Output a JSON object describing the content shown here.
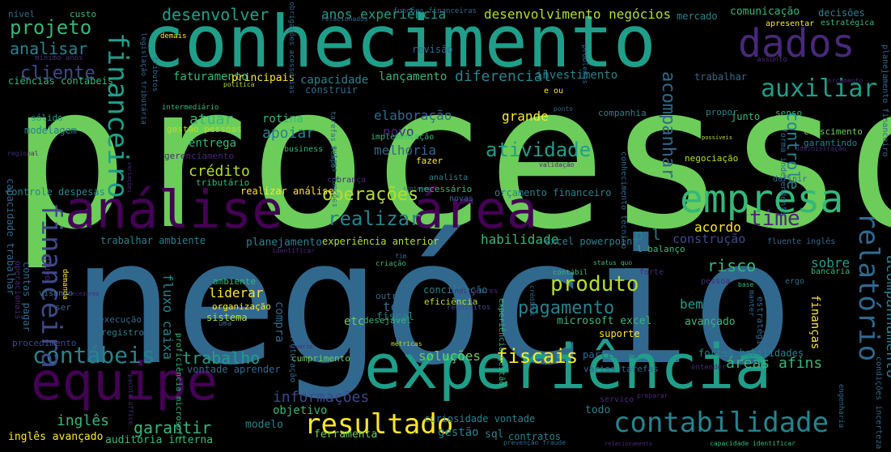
{
  "palette": {
    "background": "#000000",
    "yellow": "#fde725",
    "lime": "#b5de2b",
    "green": "#6ccd5a",
    "seagreen": "#35b779",
    "teal": "#1f9e89",
    "tealblue": "#26828e",
    "blue": "#31688e",
    "indigo": "#3e4989",
    "purple": "#482878",
    "darkpurple": "#440154"
  },
  "words": [
    {
      "text": "processo",
      "color": "#6ccd5a"
    },
    {
      "text": "negócio",
      "color": "#31688e"
    },
    {
      "text": "conhecimento",
      "color": "#1f9e89"
    },
    {
      "text": "experiência",
      "color": "#1f9e89"
    },
    {
      "text": "análise",
      "color": "#440154"
    },
    {
      "text": "área",
      "color": "#440154"
    },
    {
      "text": "equipe",
      "color": "#440154"
    },
    {
      "text": "empresa",
      "color": "#35b779"
    },
    {
      "text": "dados",
      "color": "#482878"
    },
    {
      "text": "contábeis",
      "color": "#26828e"
    },
    {
      "text": "resultado",
      "color": "#fde725"
    },
    {
      "text": "contabilidade",
      "color": "#26828e"
    },
    {
      "text": "financeiro",
      "color": "#1f9e89"
    },
    {
      "text": "financeira",
      "color": "#3e4989"
    },
    {
      "text": "relatório",
      "color": "#31688e"
    },
    {
      "text": "acompanhamento",
      "color": "#26828e"
    },
    {
      "text": "auxiliar",
      "color": "#1f9e89"
    },
    {
      "text": "projeto",
      "color": "#35b779"
    },
    {
      "text": "operações",
      "color": "#b5de2b"
    },
    {
      "text": "atividade",
      "color": "#1f9e89"
    },
    {
      "text": "produto",
      "color": "#b5de2b"
    },
    {
      "text": "pagamento",
      "color": "#26828e"
    },
    {
      "text": "fiscais",
      "color": "#fde725"
    },
    {
      "text": "realizar",
      "color": "#26828e"
    },
    {
      "text": "time",
      "color": "#482878"
    },
    {
      "text": "acompanhar",
      "color": "#31688e"
    },
    {
      "text": "controle",
      "color": "#26828e"
    },
    {
      "text": "cliente",
      "color": "#3e4989"
    },
    {
      "text": "analisar",
      "color": "#26828e"
    },
    {
      "text": "desenvolver",
      "color": "#1f9e89"
    },
    {
      "text": "anos experiência",
      "color": "#1f9e89"
    },
    {
      "text": "desenvolvimento negócios",
      "color": "#b5de2b"
    },
    {
      "text": "trabalho",
      "color": "#1f9e89"
    },
    {
      "text": "informações",
      "color": "#3e4989"
    },
    {
      "text": "garantir",
      "color": "#35b779"
    },
    {
      "text": "inglês",
      "color": "#35b779"
    },
    {
      "text": "soluções",
      "color": "#6ccd5a"
    },
    {
      "text": "áreas afins",
      "color": "#35b779"
    },
    {
      "text": "crédito",
      "color": "#b5de2b"
    },
    {
      "text": "atuar",
      "color": "#35b779"
    },
    {
      "text": "melhoria",
      "color": "#31688e"
    },
    {
      "text": "risco",
      "color": "#35b779"
    },
    {
      "text": "diferencial",
      "color": "#26828e"
    },
    {
      "text": "elaboração",
      "color": "#31688e"
    },
    {
      "text": "apoiar",
      "color": "#26828e"
    },
    {
      "text": "rotina",
      "color": "#35b779"
    },
    {
      "text": "capacidade",
      "color": "#26828e"
    },
    {
      "text": "faturamento",
      "color": "#35b779"
    },
    {
      "text": "lançamento",
      "color": "#35b779"
    },
    {
      "text": "investimento",
      "color": "#26828e"
    },
    {
      "text": "grande",
      "color": "#fde725"
    },
    {
      "text": "novo",
      "color": "#482878"
    },
    {
      "text": "acordo",
      "color": "#fde725"
    },
    {
      "text": "bem",
      "color": "#1f9e89"
    },
    {
      "text": "habilidade",
      "color": "#35b779"
    },
    {
      "text": "construção",
      "color": "#3e4989"
    },
    {
      "text": "sobre",
      "color": "#1f9e89"
    },
    {
      "text": "p l",
      "color": "#26828e"
    },
    {
      "text": "liderar",
      "color": "#fde725"
    },
    {
      "text": "ter",
      "color": "#31688e"
    },
    {
      "text": "etc",
      "color": "#6ccd5a"
    },
    {
      "text": "fluxo caixa",
      "color": "#26828e"
    },
    {
      "text": "compra",
      "color": "#31688e"
    },
    {
      "text": "entrega",
      "color": "#35b779"
    },
    {
      "text": "objetivo",
      "color": "#35b779"
    },
    {
      "text": "gestão",
      "color": "#26828e"
    },
    {
      "text": "modelo",
      "color": "#26828e"
    },
    {
      "text": "ferramenta",
      "color": "#6ccd5a"
    },
    {
      "text": "sql",
      "color": "#26828e"
    },
    {
      "text": "todo",
      "color": "#26828e"
    },
    {
      "text": "contratos",
      "color": "#26828e"
    },
    {
      "text": "inglês avançado",
      "color": "#fde725"
    },
    {
      "text": "auditoria interna",
      "color": "#35b779"
    },
    {
      "text": "curiosidade vontade",
      "color": "#26828e"
    },
    {
      "text": "trabalhar ambiente",
      "color": "#26828e"
    },
    {
      "text": "planejamento",
      "color": "#26828e"
    },
    {
      "text": "experiência anterior",
      "color": "#b5de2b"
    },
    {
      "text": "excel powerpoint",
      "color": "#26828e"
    },
    {
      "text": "l balanço",
      "color": "#35b779"
    },
    {
      "text": "microsoft excel",
      "color": "#35b779"
    },
    {
      "text": "avançado",
      "color": "#35b779"
    },
    {
      "text": "suporte",
      "color": "#fde725"
    },
    {
      "text": "participar",
      "color": "#31688e"
    },
    {
      "text": "fortes habilidades",
      "color": "#26828e"
    },
    {
      "text": "várias tarefas",
      "color": "#31688e"
    },
    {
      "text": "cumprimento",
      "color": "#6ccd5a"
    },
    {
      "text": "conciliação",
      "color": "#26828e"
    },
    {
      "text": "eficiência",
      "color": "#b5de2b"
    },
    {
      "text": "outros",
      "color": "#31688e"
    },
    {
      "text": "fiscal",
      "color": "#26828e"
    },
    {
      "text": "desejável",
      "color": "#35b779"
    },
    {
      "text": "sistema",
      "color": "#b5de2b"
    },
    {
      "text": "organização",
      "color": "#fde725"
    },
    {
      "text": "ambiente",
      "color": "#35b779"
    },
    {
      "text": "execução",
      "color": "#31688e"
    },
    {
      "text": "registro",
      "color": "#26828e"
    },
    {
      "text": "vontade aprender",
      "color": "#31688e"
    },
    {
      "text": "procedimento",
      "color": "#3e4989"
    },
    {
      "text": "sólido",
      "color": "#1f9e89"
    },
    {
      "text": "modelagem",
      "color": "#26828e"
    },
    {
      "text": "controle despesas",
      "color": "#26828e"
    },
    {
      "text": "realizar análise",
      "color": "#fde725"
    },
    {
      "text": "orçamento financeiro",
      "color": "#26828e"
    },
    {
      "text": "tributário",
      "color": "#35b779"
    },
    {
      "text": "gerenciamento",
      "color": "#482878"
    },
    {
      "text": "gestão pessoas",
      "color": "#b5de2b"
    },
    {
      "text": "business",
      "color": "#35b779"
    },
    {
      "text": "principais",
      "color": "#fde725"
    },
    {
      "text": "construir",
      "color": "#31688e"
    },
    {
      "text": "revisão",
      "color": "#31688e"
    },
    {
      "text": "comunicação",
      "color": "#35b779"
    },
    {
      "text": "decisões",
      "color": "#26828e"
    },
    {
      "text": "mercado",
      "color": "#26828e"
    },
    {
      "text": "apresentar",
      "color": "#fde725"
    },
    {
      "text": "estratégica",
      "color": "#35b779"
    },
    {
      "text": "trabalhar",
      "color": "#31688e"
    },
    {
      "text": "companhia",
      "color": "#26828e"
    },
    {
      "text": "propor",
      "color": "#26828e"
    },
    {
      "text": "junto",
      "color": "#35b779"
    },
    {
      "text": "senso",
      "color": "#35b779"
    },
    {
      "text": "crescimento",
      "color": "#6ccd5a"
    },
    {
      "text": "garantindo",
      "color": "#26828e"
    },
    {
      "text": "negociação",
      "color": "#b5de2b"
    },
    {
      "text": "definir",
      "color": "#31688e"
    },
    {
      "text": "analista",
      "color": "#26828e"
    },
    {
      "text": "cobrança",
      "color": "#482878"
    },
    {
      "text": "fazer",
      "color": "#fde725"
    },
    {
      "text": "implementação",
      "color": "#35b779"
    },
    {
      "text": "necessário",
      "color": "#35b779"
    },
    {
      "text": "novas",
      "color": "#31688e"
    },
    {
      "text": "e ou",
      "color": "#fde725"
    },
    {
      "text": "nível",
      "color": "#31688e"
    },
    {
      "text": "custo",
      "color": "#35b779"
    },
    {
      "text": "ciências contábeis",
      "color": "#35b779"
    },
    {
      "text": "mínimo anos",
      "color": "#482878"
    },
    {
      "text": "intermediário",
      "color": "#35b779"
    },
    {
      "text": "bancária",
      "color": "#35b779"
    },
    {
      "text": "fluente inglês",
      "color": "#31688e"
    },
    {
      "text": "pessoa",
      "color": "#482878"
    },
    {
      "text": "finanças",
      "color": "#fde725"
    },
    {
      "text": "estratégia",
      "color": "#31688e"
    },
    {
      "text": "contas pagar",
      "color": "#31688e"
    },
    {
      "text": "capacidade trabalhar",
      "color": "#31688e"
    },
    {
      "text": "proficiência microsoft",
      "color": "#35b779"
    },
    {
      "text": "estruturação",
      "color": "#31688e"
    },
    {
      "text": "experiência gestão",
      "color": "#35b779"
    },
    {
      "text": "tarefas tempo",
      "color": "#31688e"
    },
    {
      "text": "outras funções",
      "color": "#31688e"
    },
    {
      "text": "conhecimento técnico",
      "color": "#31688e"
    },
    {
      "text": "forma independente",
      "color": "#31688e"
    },
    {
      "text": "planejamento financeiro",
      "color": "#31688e"
    },
    {
      "text": "condições incerteza",
      "color": "#31688e"
    },
    {
      "text": "engenharia",
      "color": "#31688e"
    },
    {
      "text": "operacionais",
      "color": "#482878"
    },
    {
      "text": "grupo",
      "color": "#482878"
    },
    {
      "text": "visando",
      "color": "#26828e"
    },
    {
      "text": "demanda",
      "color": "#fde725"
    },
    {
      "text": "legislação tributária",
      "color": "#31688e"
    },
    {
      "text": "tributos",
      "color": "#31688e"
    },
    {
      "text": "funções financeiras",
      "color": "#31688e"
    },
    {
      "text": "relacionados",
      "color": "#31688e"
    },
    {
      "text": "obrigações acessórias",
      "color": "#31688e"
    },
    {
      "text": "problemas",
      "color": "#31688e"
    },
    {
      "text": "demais",
      "color": "#fde725"
    },
    {
      "text": "política",
      "color": "#b5de2b"
    },
    {
      "text": "ponto",
      "color": "#31688e"
    },
    {
      "text": "assunto",
      "color": "#482878"
    },
    {
      "text": "orçamento",
      "color": "#482878"
    },
    {
      "text": "status quo",
      "color": "#35b779"
    },
    {
      "text": "base",
      "color": "#35b779"
    },
    {
      "text": "manter",
      "color": "#31688e"
    },
    {
      "text": "ergo",
      "color": "#31688e"
    },
    {
      "text": "forte",
      "color": "#482878"
    },
    {
      "text": "contábil",
      "color": "#35b779"
    },
    {
      "text": "fim",
      "color": "#31688e"
    },
    {
      "text": "criação",
      "color": "#35b779"
    },
    {
      "text": "indicadores",
      "color": "#482878"
    },
    {
      "text": "requisitos",
      "color": "#3e4989"
    },
    {
      "text": "créditos",
      "color": "#31688e"
    },
    {
      "text": "métricas",
      "color": "#b5de2b"
    },
    {
      "text": "entender",
      "color": "#482878"
    },
    {
      "text": "preparar",
      "color": "#482878"
    },
    {
      "text": "serviço",
      "color": "#482878"
    },
    {
      "text": "prevenção fraude",
      "color": "#31688e"
    },
    {
      "text": "relacionamento",
      "color": "#482878"
    },
    {
      "text": "capacidade identificar",
      "color": "#35b779"
    },
    {
      "text": "identificar",
      "color": "#482878"
    },
    {
      "text": "contagem",
      "color": "#31688e"
    },
    {
      "text": "variações",
      "color": "#482878"
    },
    {
      "text": "regional",
      "color": "#482878"
    },
    {
      "text": "usuário",
      "color": "#482878"
    },
    {
      "text": "fornecedores",
      "color": "#482878"
    },
    {
      "text": "possíveis",
      "color": "#b5de2b"
    },
    {
      "text": "administração",
      "color": "#482878"
    },
    {
      "text": "validação",
      "color": "#482878"
    },
    {
      "text": "pacote office",
      "color": "#482878"
    },
    {
      "text": "uma",
      "color": "#31688e"
    },
    {
      "text": "ser",
      "color": "#31688e"
    }
  ]
}
